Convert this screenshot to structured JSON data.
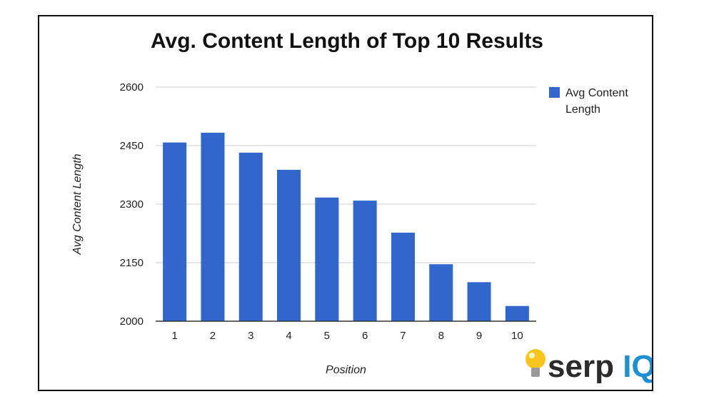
{
  "chart_data": {
    "type": "bar",
    "title": "Avg. Content Length of Top 10 Results",
    "xlabel": "Position",
    "ylabel": "Avg Content Length",
    "categories": [
      "1",
      "2",
      "3",
      "4",
      "5",
      "6",
      "7",
      "8",
      "9",
      "10"
    ],
    "series": [
      {
        "name": "Avg Content Length",
        "legend_lines": [
          "Avg Content",
          "Length"
        ],
        "color": "#3366cc",
        "values": [
          2458,
          2483,
          2432,
          2388,
          2317,
          2309,
          2227,
          2146,
          2100,
          2039
        ]
      }
    ],
    "ylim": [
      2000,
      2600
    ],
    "yticks": [
      2000,
      2150,
      2300,
      2450,
      2600
    ],
    "grid": true,
    "legend": "right"
  },
  "logo": {
    "text_dark": "serp",
    "text_brand": "IQ",
    "dark_color": "#2b2b2b",
    "brand_color": "#1e8fd0",
    "icon": "lightbulb-icon",
    "bulb_color": "#f7c51e"
  }
}
